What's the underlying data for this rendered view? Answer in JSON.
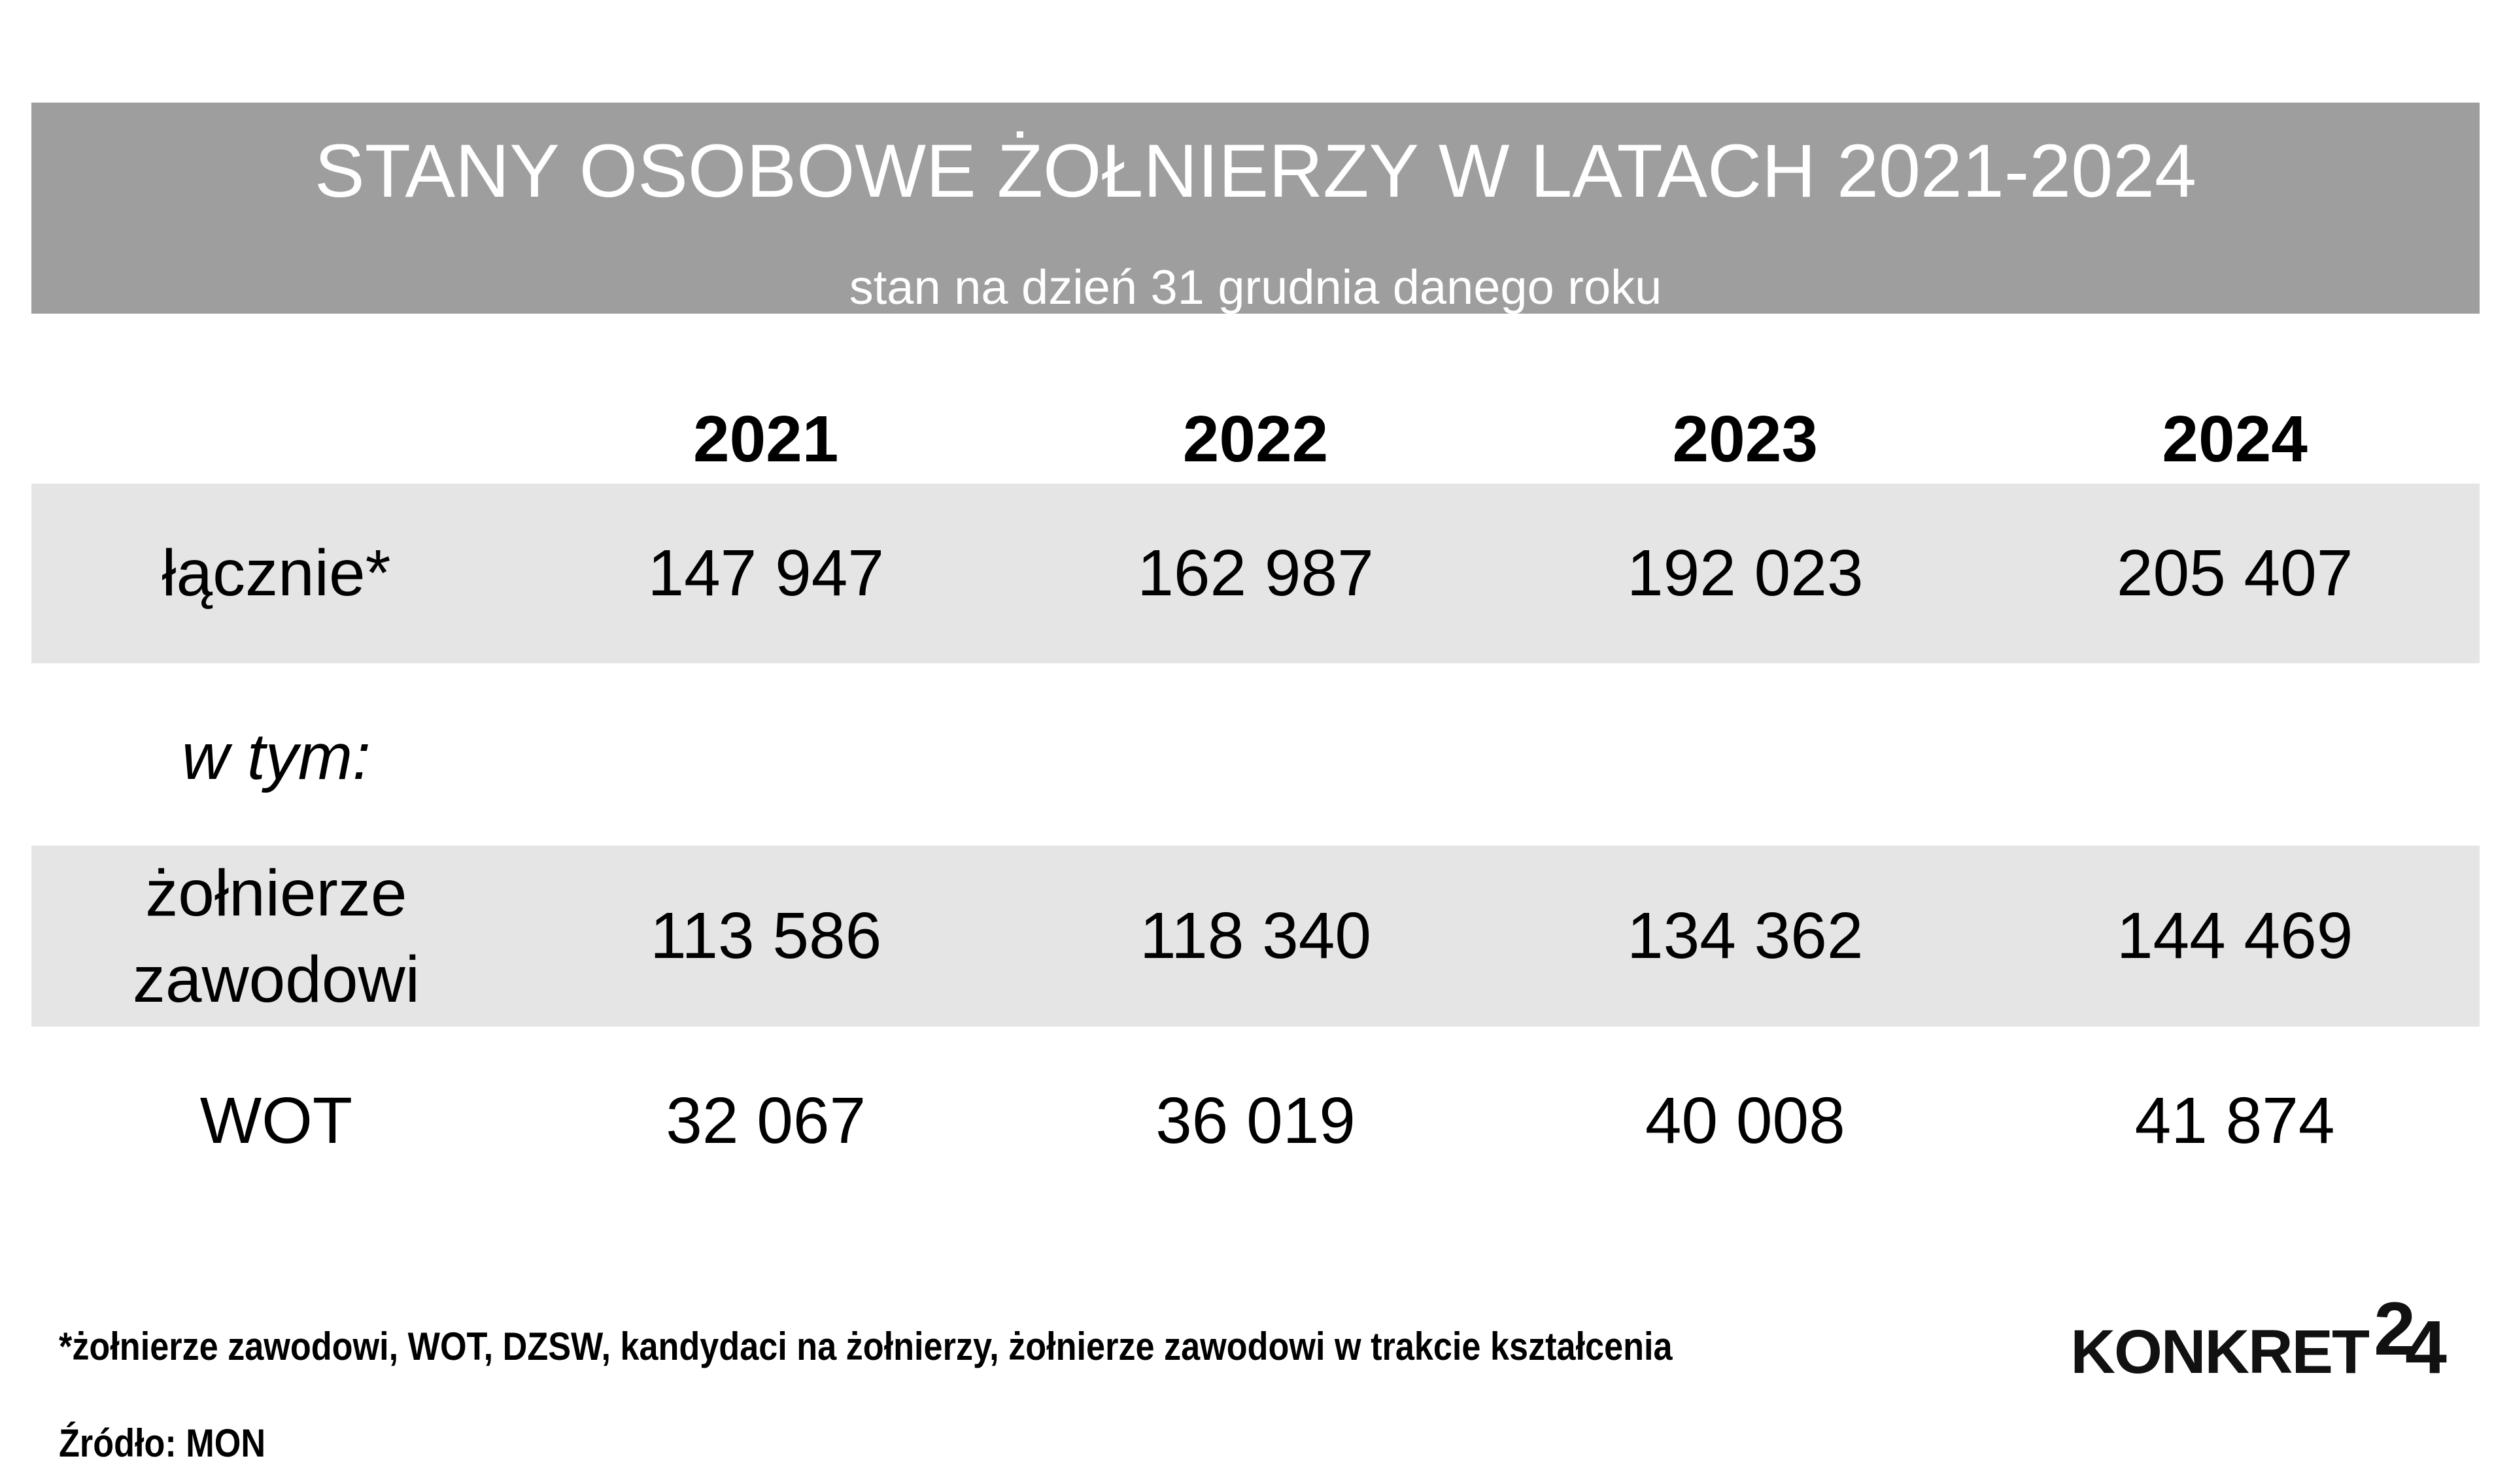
{
  "header": {
    "title": "STANY OSOBOWE ŻOŁNIERZY W LATACH 2021-2024",
    "subtitle": "stan na dzień 31 grudnia danego roku"
  },
  "table": {
    "year_headers": [
      "2021",
      "2022",
      "2023",
      "2024"
    ],
    "rows": [
      {
        "label": "łącznie*",
        "values": [
          "147 947",
          "162 987",
          "192 023",
          "205 407"
        ]
      },
      {
        "label": "w tym:",
        "values": [
          "",
          "",
          "",
          ""
        ]
      },
      {
        "label": "żołnierze zawodowi",
        "values": [
          "113 586",
          "118 340",
          "134 362",
          "144 469"
        ]
      },
      {
        "label": "WOT",
        "values": [
          "32 067",
          "36 019",
          "40 008",
          "41 874"
        ]
      }
    ]
  },
  "footnote": "*żołnierze zawodowi, WOT, DZSW, kandydaci na żołnierzy, żołnierze zawodowi w trakcie kształcenia",
  "source": "Źródło: MON",
  "logo": {
    "word": "KONKRET",
    "digit2": "2",
    "digit4": "4"
  },
  "colors": {
    "title_band": "#9e9e9e",
    "row_band": "#e5e5e5",
    "title_text": "#ffffff",
    "text": "#000000",
    "background": "#ffffff"
  },
  "chart_data": {
    "type": "table",
    "title": "STANY OSOBOWE ŻOŁNIERZY W LATACH 2021-2024",
    "subtitle": "stan na dzień 31 grudnia danego roku",
    "columns": [
      "2021",
      "2022",
      "2023",
      "2024"
    ],
    "rows": [
      {
        "label": "łącznie*",
        "values": [
          147947,
          162987,
          192023,
          205407
        ]
      },
      {
        "label": "żołnierze zawodowi",
        "values": [
          113586,
          118340,
          134362,
          144469
        ]
      },
      {
        "label": "WOT",
        "values": [
          32067,
          36019,
          40008,
          41874
        ]
      }
    ],
    "footnote": "*żołnierze zawodowi, WOT, DZSW, kandydaci na żołnierzy, żołnierze zawodowi w trakcie kształcenia",
    "source": "MON"
  }
}
